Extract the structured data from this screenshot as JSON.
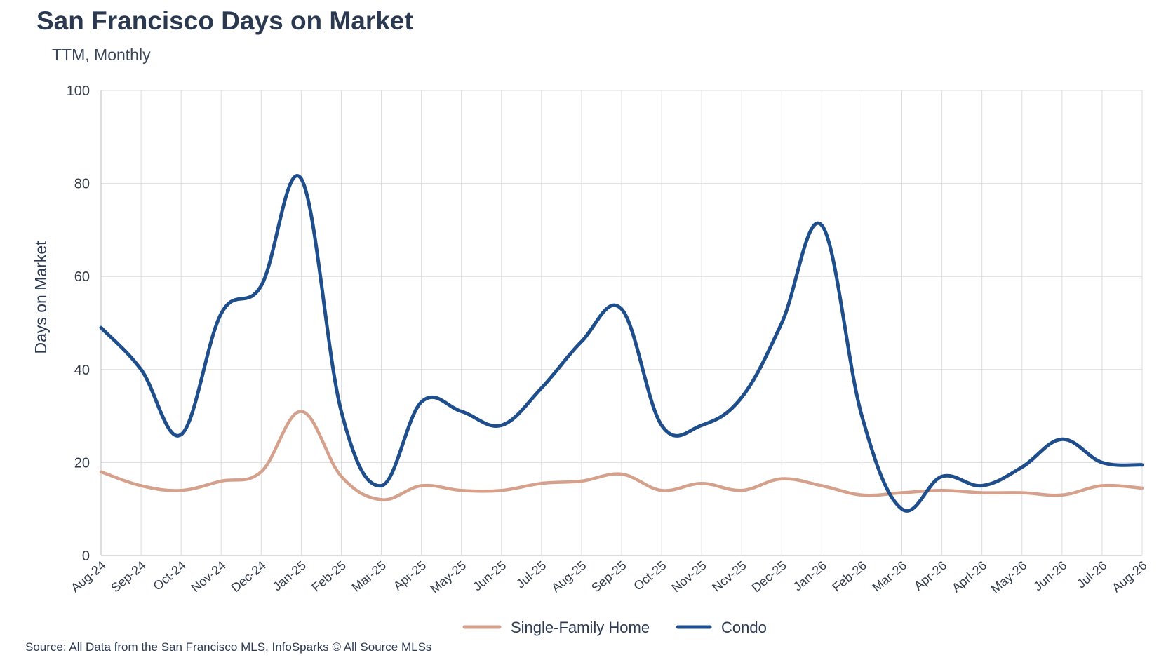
{
  "chart_data": {
    "type": "line",
    "title": "San Francisco Days on Market",
    "subtitle": "TTM, Monthly",
    "ylabel": "Days on Market",
    "xlabel": "",
    "ylim": [
      0,
      100
    ],
    "yticks": [
      0,
      20,
      40,
      60,
      80,
      100
    ],
    "grid": true,
    "legend_position": "bottom-center",
    "categories": [
      "Aug-24",
      "Sep-24",
      "Oct-24",
      "Nov-24",
      "Dec-24",
      "Jan-25",
      "Feb-25",
      "Mar-25",
      "Apr-25",
      "May-25",
      "Jun-25",
      "Jul-25",
      "Aug-25",
      "Sep-25",
      "Oct-25",
      "Nov-25",
      "Ncv-25",
      "Dec-25",
      "Jan-26",
      "Feb-26",
      "Mar-26",
      "Apr-26",
      "Aprl-26",
      "May-26",
      "Jun-26",
      "Jul-26",
      "Aug-26"
    ],
    "series": [
      {
        "name": "Single-Family Home",
        "color": "#d6a18c",
        "values": [
          18,
          15,
          14,
          16,
          18,
          31,
          17,
          12,
          15,
          14,
          14,
          15.5,
          16,
          17.5,
          14,
          15.5,
          14,
          16.5,
          15,
          13,
          13.5,
          14,
          13.5,
          13.5,
          13,
          15,
          14.5
        ]
      },
      {
        "name": "Condo",
        "color": "#1f4e8c",
        "values": [
          49,
          40,
          26,
          52,
          58,
          81,
          31,
          15,
          33,
          31,
          28,
          36,
          46,
          53,
          28,
          28,
          34,
          50,
          71,
          30,
          10,
          17,
          15,
          19,
          25,
          20,
          19.5
        ]
      }
    ],
    "source": "Source: All Data from the San Francisco MLS, InfoSparks © All Source MLSs"
  }
}
